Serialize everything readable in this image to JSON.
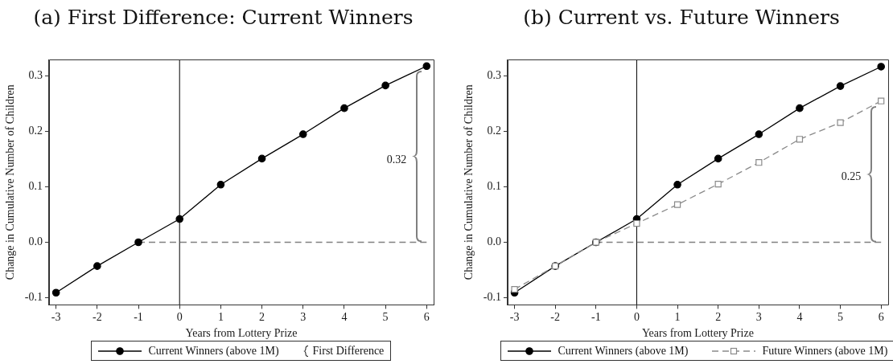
{
  "chart_data": [
    {
      "type": "line",
      "title": "(a) First Difference: Current Winners",
      "xlabel": "Years from Lottery Prize",
      "ylabel": "Change in Cumulative Number of Children",
      "x": [
        -3,
        -2,
        -1,
        0,
        1,
        2,
        3,
        4,
        5,
        6
      ],
      "line_style": "solid",
      "series": [
        {
          "values": [
            null,
            null,
            0,
            0,
            0,
            0,
            0,
            0,
            0,
            0
          ],
          "color": "#808080",
          "line_style": "dashed"
        },
        {
          "name": "Current Winners (above 1M)",
          "color": "#000000",
          "values": [
            -0.091,
            -0.043,
            0,
            0.042,
            0.104,
            0.151,
            0.195,
            0.242,
            0.283,
            0.318
          ],
          "marker": "circle"
        }
      ],
      "xlim": [
        -3.17,
        6.17
      ],
      "xticks": [
        -3,
        -2,
        -1,
        0,
        1,
        2,
        3,
        4,
        5,
        6
      ],
      "ylim": [
        -0.113,
        0.33
      ],
      "yticks": [
        -0.1,
        {
          "value": 0,
          "label": "0.0"
        },
        0.1,
        0.2,
        0.3
      ],
      "ref_lines": [
        {
          "axis": "x",
          "value": 0,
          "color": "#000000"
        }
      ],
      "annotations": [
        "0.32",
        "First Difference"
      ],
      "legend": "bottom"
    },
    {
      "type": "line",
      "title": "(b) Current vs. Future Winners",
      "xlabel": "Years from Lottery Prize",
      "ylabel": "Change in Cumulative Number of Children",
      "x": [
        -3,
        -2,
        -1,
        0,
        1,
        2,
        3,
        4,
        5,
        6
      ],
      "line_style": "solid",
      "series": [
        {
          "values": [
            null,
            null,
            0,
            0,
            0,
            0,
            0,
            0,
            0,
            0
          ],
          "color": "#808080",
          "line_style": "dashed"
        },
        {
          "name": "Current Winners (above 1M)",
          "color": "#000000",
          "values": [
            -0.091,
            -0.043,
            0,
            0.042,
            0.104,
            0.151,
            0.195,
            0.242,
            0.282,
            0.317
          ],
          "marker": "circle"
        },
        {
          "name": "Future Winners (above 1M)",
          "color": "#8a8a8a",
          "values": [
            -0.085,
            -0.043,
            0,
            0.034,
            0.068,
            0.105,
            0.144,
            0.186,
            0.216,
            0.255
          ],
          "marker": "square",
          "line_style": "dashed"
        }
      ],
      "xlim": [
        -3.17,
        6.17
      ],
      "xticks": [
        -3,
        -2,
        -1,
        0,
        1,
        2,
        3,
        4,
        5,
        6
      ],
      "ylim": [
        -0.113,
        0.33
      ],
      "yticks": [
        -0.1,
        {
          "value": 0,
          "label": "0.0"
        },
        0.1,
        0.2,
        0.3
      ],
      "ref_lines": [
        {
          "axis": "x",
          "value": 0,
          "color": "#000000"
        }
      ],
      "annotations": [
        "0.25"
      ],
      "legend": "bottom"
    }
  ]
}
